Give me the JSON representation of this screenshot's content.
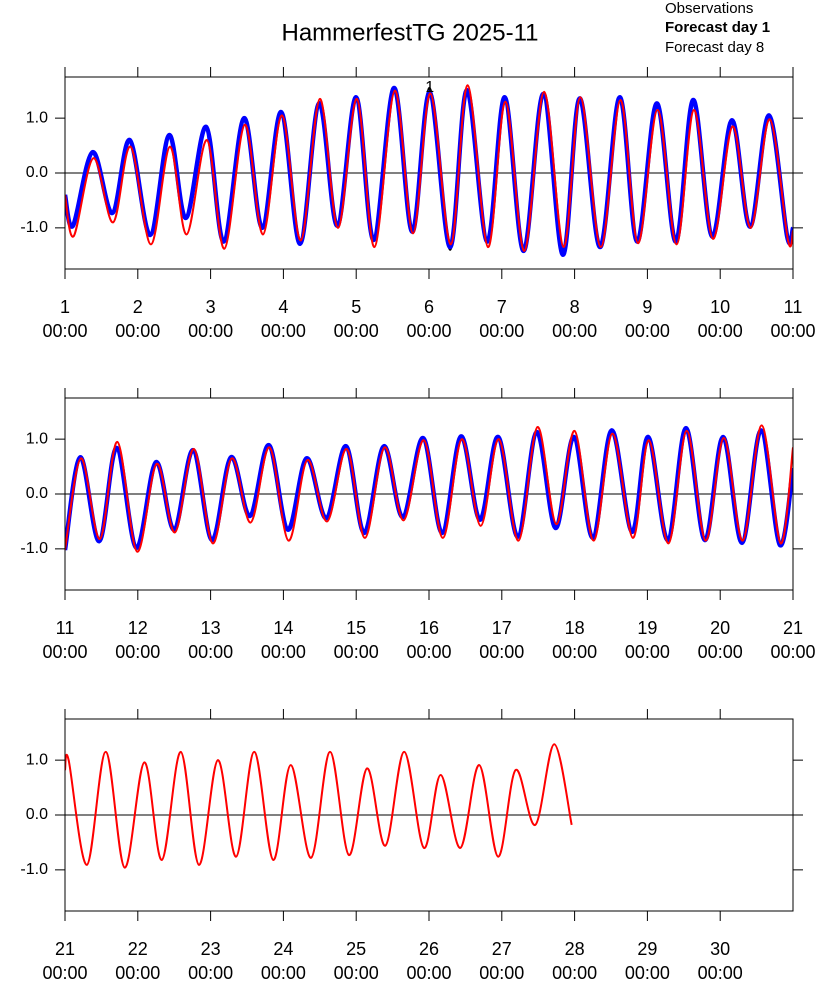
{
  "chart_data": [
    {
      "type": "line",
      "title": "HammerfestTG 2025-11",
      "xlim": [
        1,
        11
      ],
      "xticks": [
        1,
        2,
        3,
        4,
        5,
        6,
        7,
        8,
        9,
        10,
        11
      ],
      "tick_sublabel": "00:00",
      "ylim": [
        -1.75,
        1.75
      ],
      "yticks": [
        {
          "value": -1,
          "label": "-1.0"
        },
        {
          "value": 0,
          "label": "0.0"
        },
        {
          "value": 1,
          "label": "1.0"
        }
      ],
      "annotations": [
        {
          "text": "1",
          "x": 6.01,
          "y": 1.55
        }
      ],
      "series": [
        {
          "name": "Observations",
          "color": "#000000",
          "line_width": 2,
          "x": [
            1.0,
            1.11,
            1.38,
            1.65,
            1.89,
            2.17,
            2.43,
            2.66,
            2.94,
            3.18,
            3.46,
            3.71,
            3.97,
            4.23,
            4.49,
            4.74,
            5.0,
            5.24,
            5.52,
            5.77,
            6.01,
            6.29,
            6.52,
            6.8,
            7.04,
            7.3,
            7.57,
            7.84,
            8.07,
            8.35,
            8.62,
            8.86,
            9.13,
            9.39,
            9.63,
            9.89,
            10.16,
            10.41,
            10.67,
            10.92,
            11.0
          ],
          "values": [
            -0.4,
            -0.96,
            0.38,
            -0.73,
            0.6,
            -1.13,
            0.69,
            -0.82,
            0.84,
            -1.25,
            1.0,
            -1.0,
            1.11,
            -1.29,
            1.27,
            -0.96,
            1.38,
            -1.22,
            1.55,
            -1.07,
            1.55,
            -1.4,
            1.51,
            -1.25,
            1.38,
            -1.42,
            1.44,
            -1.49,
            1.36,
            -1.35,
            1.38,
            -1.25,
            1.27,
            -1.25,
            1.33,
            -1.16,
            0.96,
            -0.98,
            1.05,
            -1.16,
            -1.0
          ]
        },
        {
          "name": "Forecast day 1",
          "color": "#0000ff",
          "line_width": 4.5,
          "bold": true,
          "x": [
            1.0,
            1.11,
            1.38,
            1.65,
            1.89,
            2.17,
            2.43,
            2.66,
            2.94,
            3.18,
            3.46,
            3.71,
            3.97,
            4.23,
            4.49,
            4.74,
            5.0,
            5.24,
            5.52,
            5.77,
            6.01,
            6.29,
            6.52,
            6.8,
            7.04,
            7.3,
            7.57,
            7.84,
            8.07,
            8.35,
            8.62,
            8.86,
            9.13,
            9.39,
            9.63,
            9.89,
            10.16,
            10.41,
            10.67,
            10.92,
            11.0
          ],
          "values": [
            -0.4,
            -0.96,
            0.38,
            -0.73,
            0.6,
            -1.13,
            0.69,
            -0.82,
            0.84,
            -1.25,
            1.0,
            -1.0,
            1.11,
            -1.29,
            1.27,
            -0.96,
            1.38,
            -1.22,
            1.55,
            -1.07,
            1.47,
            -1.35,
            1.51,
            -1.25,
            1.38,
            -1.42,
            1.44,
            -1.49,
            1.36,
            -1.35,
            1.38,
            -1.25,
            1.27,
            -1.25,
            1.33,
            -1.16,
            0.96,
            -0.98,
            1.05,
            -1.16,
            -1.0
          ]
        },
        {
          "name": "Forecast day 8",
          "color": "#ff0000",
          "line_width": 2,
          "x": [
            1.0,
            1.12,
            1.39,
            1.66,
            1.9,
            2.18,
            2.44,
            2.67,
            2.95,
            3.19,
            3.47,
            3.72,
            3.98,
            4.24,
            4.5,
            4.75,
            5.01,
            5.25,
            5.53,
            5.78,
            6.02,
            6.3,
            6.53,
            6.81,
            7.05,
            7.31,
            7.58,
            7.85,
            8.08,
            8.36,
            8.63,
            8.87,
            9.14,
            9.4,
            9.64,
            9.9,
            10.17,
            10.42,
            10.68,
            10.93,
            11.0
          ],
          "values": [
            -0.4,
            -1.15,
            0.27,
            -0.9,
            0.48,
            -1.3,
            0.48,
            -1.12,
            0.6,
            -1.38,
            0.88,
            -1.12,
            1.05,
            -1.23,
            1.35,
            -1.0,
            1.35,
            -1.35,
            1.5,
            -1.1,
            1.45,
            -1.3,
            1.6,
            -1.35,
            1.3,
            -1.42,
            1.48,
            -1.35,
            1.38,
            -1.35,
            1.33,
            -1.28,
            1.15,
            -1.3,
            1.15,
            -1.2,
            0.85,
            -1.0,
            0.98,
            -1.22,
            -1.05
          ]
        }
      ]
    },
    {
      "type": "line",
      "xlim": [
        11,
        21
      ],
      "xticks": [
        11,
        12,
        13,
        14,
        15,
        16,
        17,
        18,
        19,
        20,
        21
      ],
      "tick_sublabel": "00:00",
      "ylim": [
        -1.75,
        1.75
      ],
      "yticks": [
        {
          "value": -1,
          "label": "-1.0"
        },
        {
          "value": 0,
          "label": "0.0"
        },
        {
          "value": 1,
          "label": "1.0"
        }
      ],
      "series": [
        {
          "name": "Observations",
          "color": "#000000",
          "line_width": 2,
          "x": [
            11.0,
            11.21,
            11.47,
            11.71,
            11.98,
            12.25,
            12.5,
            12.76,
            13.02,
            13.28,
            13.54,
            13.8,
            14.06,
            14.32,
            14.59,
            14.86,
            15.11,
            15.38,
            15.64,
            15.92,
            16.18,
            16.44,
            16.7,
            16.95,
            17.22,
            17.48,
            17.74,
            17.99,
            18.25,
            18.51,
            18.79,
            19.01,
            19.28,
            19.53,
            19.79,
            20.04,
            20.3,
            20.56,
            20.82,
            21.0
          ],
          "values": [
            -1.02,
            0.67,
            -0.86,
            0.84,
            -0.98,
            0.58,
            -0.65,
            0.8,
            -0.84,
            0.67,
            -0.4,
            0.89,
            -0.65,
            0.65,
            -0.44,
            0.87,
            -0.71,
            0.87,
            -0.42,
            1.02,
            -0.71,
            1.05,
            -0.47,
            1.04,
            -0.78,
            1.13,
            -0.62,
            1.04,
            -0.8,
            1.16,
            -0.69,
            1.04,
            -0.84,
            1.2,
            -0.84,
            1.04,
            -0.89,
            1.16,
            -0.93,
            0.47
          ]
        },
        {
          "name": "Forecast day 1",
          "color": "#0000ff",
          "line_width": 4.5,
          "bold": true,
          "x": [
            11.0,
            11.21,
            11.47,
            11.71,
            11.98,
            12.25,
            12.5,
            12.76,
            13.02,
            13.28,
            13.54,
            13.8,
            14.06,
            14.32,
            14.59,
            14.86,
            15.11,
            15.38,
            15.64,
            15.92,
            16.18,
            16.44,
            16.7,
            16.95,
            17.22,
            17.48,
            17.74,
            17.99,
            18.25,
            18.51,
            18.79,
            19.01,
            19.28,
            19.53,
            19.79,
            20.04,
            20.3,
            20.56,
            20.82,
            21.0
          ],
          "values": [
            -1.02,
            0.67,
            -0.86,
            0.84,
            -0.98,
            0.58,
            -0.65,
            0.8,
            -0.84,
            0.67,
            -0.4,
            0.89,
            -0.65,
            0.65,
            -0.44,
            0.87,
            -0.71,
            0.87,
            -0.42,
            1.02,
            -0.71,
            1.05,
            -0.47,
            1.04,
            -0.78,
            1.13,
            -0.62,
            1.04,
            -0.8,
            1.16,
            -0.69,
            1.04,
            -0.84,
            1.2,
            -0.84,
            1.04,
            -0.89,
            1.16,
            -0.93,
            0.47
          ]
        },
        {
          "name": "Forecast day 8",
          "color": "#ff0000",
          "line_width": 2,
          "x": [
            11.0,
            11.22,
            11.48,
            11.72,
            11.99,
            12.26,
            12.51,
            12.77,
            13.03,
            13.29,
            13.55,
            13.81,
            14.07,
            14.33,
            14.6,
            14.87,
            15.12,
            15.39,
            15.65,
            15.93,
            16.19,
            16.45,
            16.71,
            16.96,
            17.23,
            17.49,
            17.75,
            18.0,
            18.26,
            18.52,
            18.8,
            19.02,
            19.29,
            19.54,
            19.8,
            20.05,
            20.31,
            20.57,
            20.83,
            21.0
          ],
          "values": [
            -1.02,
            0.65,
            -0.82,
            0.95,
            -1.05,
            0.55,
            -0.7,
            0.82,
            -0.9,
            0.65,
            -0.52,
            0.85,
            -0.85,
            0.62,
            -0.5,
            0.82,
            -0.8,
            0.85,
            -0.48,
            0.98,
            -0.8,
            1.0,
            -0.58,
            1.0,
            -0.85,
            1.22,
            -0.55,
            1.15,
            -0.85,
            1.1,
            -0.8,
            0.98,
            -0.9,
            1.15,
            -0.85,
            1.02,
            -0.85,
            1.25,
            -0.9,
            0.85
          ]
        }
      ]
    },
    {
      "type": "line",
      "xlim": [
        21,
        31
      ],
      "xticks": [
        21,
        22,
        23,
        24,
        25,
        26,
        27,
        28,
        29,
        30
      ],
      "tick_sublabel": "00:00",
      "ylim": [
        -1.75,
        1.75
      ],
      "yticks": [
        {
          "value": -1,
          "label": "-1.0"
        },
        {
          "value": 0,
          "label": "0.0"
        },
        {
          "value": 1,
          "label": "1.0"
        }
      ],
      "series": [
        {
          "name": "Forecast day 8",
          "color": "#ff0000",
          "line_width": 2,
          "x": [
            21.0,
            21.05,
            21.3,
            21.56,
            21.82,
            22.09,
            22.33,
            22.59,
            22.84,
            23.1,
            23.35,
            23.6,
            23.86,
            24.1,
            24.38,
            24.64,
            24.9,
            25.15,
            25.4,
            25.66,
            25.93,
            26.16,
            26.43,
            26.69,
            26.95,
            27.19,
            27.46,
            27.72,
            27.96
          ],
          "values": [
            0.82,
            1.0,
            -0.91,
            1.15,
            -0.96,
            0.96,
            -0.82,
            1.15,
            -0.91,
            1.0,
            -0.76,
            1.15,
            -0.82,
            0.91,
            -0.78,
            1.15,
            -0.73,
            0.85,
            -0.56,
            1.15,
            -0.6,
            0.73,
            -0.6,
            0.91,
            -0.76,
            0.82,
            -0.18,
            1.29,
            -0.18
          ]
        }
      ]
    }
  ]
}
